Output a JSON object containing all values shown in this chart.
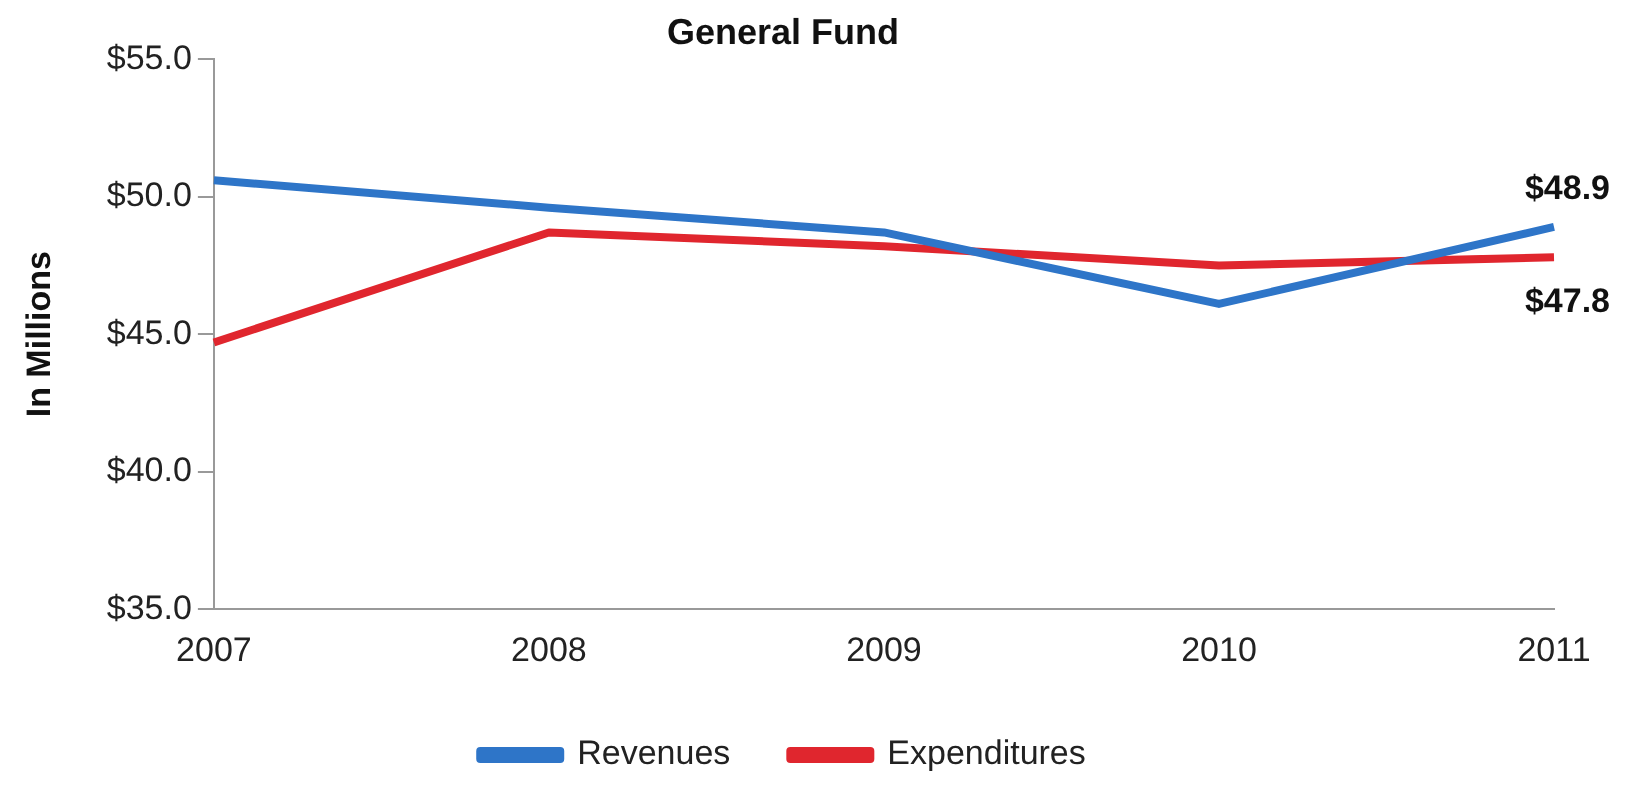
{
  "chart_data": {
    "type": "line",
    "title": "General Fund",
    "ylabel": "In Millions",
    "categories": [
      "2007",
      "2008",
      "2009",
      "2010",
      "2011"
    ],
    "series": [
      {
        "name": "Revenues",
        "color": "#2e75c8",
        "values": [
          50.6,
          49.6,
          48.7,
          46.1,
          48.9
        ]
      },
      {
        "name": "Expenditures",
        "color": "#e0262e",
        "values": [
          44.7,
          48.7,
          48.2,
          47.5,
          47.8
        ]
      }
    ],
    "ylim": [
      35,
      55
    ],
    "yticks": [
      {
        "value": 35,
        "label": "$35.0"
      },
      {
        "value": 40,
        "label": "$40.0"
      },
      {
        "value": 45,
        "label": "$45.0"
      },
      {
        "value": 50,
        "label": "$50.0"
      },
      {
        "value": 55,
        "label": "$55.0"
      }
    ],
    "annotations": [
      {
        "text": "$48.9",
        "x": "2011",
        "y": 48.9
      },
      {
        "text": "$47.8",
        "x": "2011",
        "y": 47.8
      }
    ],
    "grid": false,
    "legend": "bottom",
    "marker": "none",
    "line_style": "solid"
  }
}
